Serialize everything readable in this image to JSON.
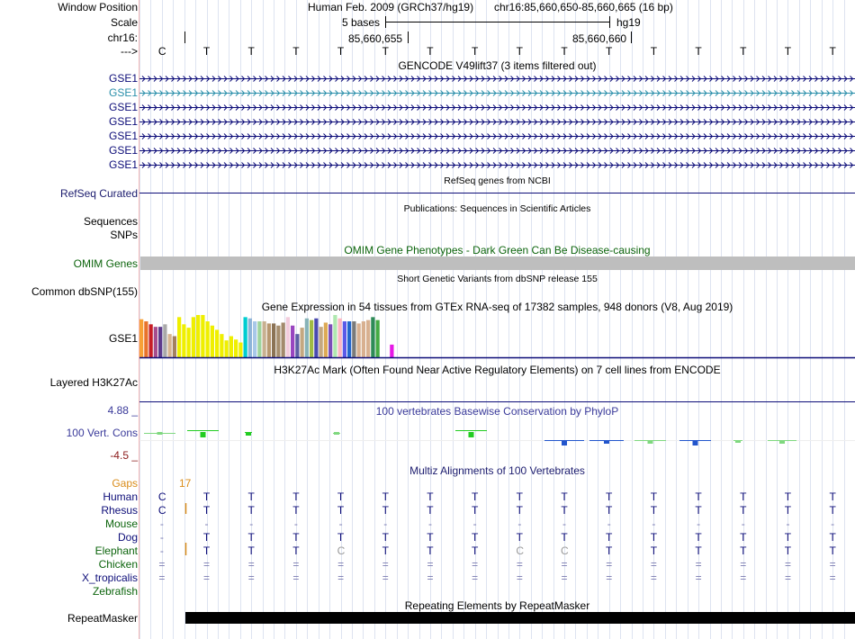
{
  "labels": {
    "window_position": "Window Position",
    "scale": "Scale",
    "chrom": "chr16:",
    "strand": "--->",
    "gencode": [
      "GSE1",
      "GSE1",
      "GSE1",
      "GSE1",
      "GSE1",
      "GSE1",
      "GSE1"
    ],
    "refseq": "RefSeq Curated",
    "sequences": "Sequences",
    "snps": "SNPs",
    "omim": "OMIM Genes",
    "dbsnp": "Common dbSNP(155)",
    "gtex": "GSE1",
    "h3k27": "Layered H3K27Ac",
    "cons_max": "4.88 _",
    "cons_label": "100 Vert. Cons",
    "cons_min": "-4.5 _",
    "gaps": "Gaps",
    "species": [
      "Human",
      "Rhesus",
      "Mouse",
      "Dog",
      "Elephant",
      "Chicken",
      "X_tropicalis",
      "Zebrafish"
    ],
    "repeatmasker": "RepeatMasker"
  },
  "header": {
    "assembly": "Human Feb. 2009 (GRCh37/hg19)",
    "position": "chr16:85,660,650-85,660,665 (16 bp)",
    "scale_text": "5 bases",
    "scale_db": "hg19",
    "coord1": "85,660,655",
    "coord2": "85,660,660"
  },
  "bases": [
    "C",
    "T",
    "T",
    "T",
    "T",
    "T",
    "T",
    "T",
    "T",
    "T",
    "T",
    "T",
    "T",
    "T",
    "T",
    "T"
  ],
  "titles": {
    "gencode": "GENCODE V49lift37 (3 items filtered out)",
    "refseq": "RefSeq genes from NCBI",
    "publications": "Publications: Sequences in Scientific Articles",
    "omim": "OMIM Gene Phenotypes - Dark Green Can Be Disease-causing",
    "dbsnp": "Short Genetic Variants from dbSNP release 155",
    "gtex": "Gene Expression in 54 tissues from GTEx RNA-seq of 17382 samples, 948 donors (V8, Aug 2019)",
    "h3k27": "H3K27Ac Mark (Often Found Near Active Regulatory Elements) on 7 cell lines from ENCODE",
    "phylop": "100 vertebrates Basewise Conservation by PhyloP",
    "multiz": "Multiz Alignments of 100 Vertebrates",
    "repeatmasker": "Repeating Elements by RepeatMasker"
  },
  "gaps_value": "17",
  "alignment": [
    [
      "C",
      "T",
      "T",
      "T",
      "T",
      "T",
      "T",
      "T",
      "T",
      "T",
      "T",
      "T",
      "T",
      "T",
      "T",
      "T"
    ],
    [
      "C",
      "T",
      "T",
      "T",
      "T",
      "T",
      "T",
      "T",
      "T",
      "T",
      "T",
      "T",
      "T",
      "T",
      "T",
      "T"
    ],
    [
      "-",
      "-",
      "-",
      "-",
      "-",
      "-",
      "-",
      "-",
      "-",
      "-",
      "-",
      "-",
      "-",
      "-",
      "-",
      "-"
    ],
    [
      "-",
      "T",
      "T",
      "T",
      "T",
      "T",
      "T",
      "T",
      "T",
      "T",
      "T",
      "T",
      "T",
      "T",
      "T",
      "T"
    ],
    [
      "-",
      "T",
      "T",
      "T",
      "C",
      "T",
      "T",
      "T",
      "C",
      "C",
      "T",
      "T",
      "T",
      "T",
      "T",
      "T"
    ],
    [
      "=",
      "=",
      "=",
      "=",
      "=",
      "=",
      "=",
      "=",
      "=",
      "=",
      "=",
      "=",
      "=",
      "=",
      "=",
      "="
    ],
    [
      "=",
      "=",
      "=",
      "=",
      "=",
      "=",
      "=",
      "=",
      "=",
      "=",
      "=",
      "=",
      "=",
      "=",
      "=",
      "="
    ],
    [
      "",
      "",
      "",
      "",
      "",
      "",
      "",
      "",
      "",
      "",
      "",
      "",
      "",
      "",
      "",
      ""
    ]
  ],
  "gtex_colors": [
    "#F7A136",
    "#E8732B",
    "#C61E26",
    "#A64D8D",
    "#5E3B8C",
    "#A9A9A9",
    "#D8B48F",
    "#A38060",
    "#EFEF00",
    "#EFEF00",
    "#EFEF00",
    "#EFEF00",
    "#EFEF00",
    "#EFEF00",
    "#EFEF00",
    "#EFEF00",
    "#EFEF00",
    "#EFEF00",
    "#EFEF00",
    "#EFEF00",
    "#EFEF00",
    "#EFEF00",
    "#00CDD1",
    "#8EB4D8",
    "#A8C8E8",
    "#9DD49D",
    "#C8B090",
    "#B89870",
    "#8B7355",
    "#A68E6E",
    "#A38A6C",
    "#F2CCDC",
    "#9945C0",
    "#5E5EA5",
    "#C4A880",
    "#88B4B8",
    "#A0BB44",
    "#4A4AB0",
    "#C4A880",
    "#DDAA55",
    "#7B4FB8",
    "#B0E8B0",
    "#FFB6C1",
    "#5A5AE8",
    "#2266CC",
    "#7A7A7A",
    "#D8B090",
    "#D8B090",
    "#D8B090",
    "#2E8B57",
    "#44AA44",
    "#C8C8C8",
    "#C8C8C8",
    "#E619E6"
  ],
  "gtex_values": [
    0.9,
    0.85,
    0.78,
    0.72,
    0.72,
    0.78,
    0.55,
    0.5,
    0.95,
    0.78,
    0.7,
    0.95,
    1.0,
    1.0,
    0.85,
    0.75,
    0.65,
    0.55,
    0.4,
    0.5,
    0.42,
    0.35,
    0.95,
    0.92,
    0.85,
    0.85,
    0.85,
    0.8,
    0.8,
    0.75,
    0.82,
    0.95,
    0.75,
    0.55,
    0.7,
    0.92,
    0.88,
    0.92,
    0.72,
    0.82,
    0.78,
    1.0,
    0.92,
    0.85,
    0.85,
    0.85,
    0.8,
    0.85,
    0.88,
    0.95,
    0.88,
    0.0,
    0.0,
    0.3
  ]
}
